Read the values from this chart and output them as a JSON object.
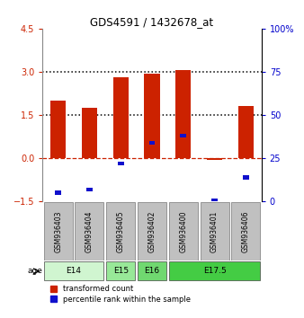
{
  "title": "GDS4591 / 1432678_at",
  "samples": [
    "GSM936403",
    "GSM936404",
    "GSM936405",
    "GSM936402",
    "GSM936400",
    "GSM936401",
    "GSM936406"
  ],
  "transformed_count": [
    2.0,
    1.75,
    2.8,
    2.95,
    3.05,
    -0.05,
    1.8
  ],
  "percentile_rank_raw": [
    5,
    7,
    22,
    34,
    38,
    0,
    14
  ],
  "ylim_main": [
    -1.5,
    4.5
  ],
  "ylim_right": [
    0,
    100
  ],
  "yticks_left": [
    -1.5,
    0,
    1.5,
    3,
    4.5
  ],
  "yticks_right": [
    0,
    25,
    50,
    75,
    100
  ],
  "bar_color_red": "#cc2200",
  "bar_color_blue": "#1010cc",
  "bar_width": 0.5,
  "tick_color_left": "#cc2200",
  "tick_color_right": "#0000cc",
  "legend_red_label": "transformed count",
  "legend_blue_label": "percentile rank within the sample",
  "age_groups": [
    {
      "label": "E14",
      "spans": [
        0,
        1
      ],
      "color": "#d4f5d4"
    },
    {
      "label": "E15",
      "spans": [
        2
      ],
      "color": "#90ee90"
    },
    {
      "label": "E16",
      "spans": [
        3
      ],
      "color": "#70d870"
    },
    {
      "label": "E17.5",
      "spans": [
        4,
        5,
        6
      ],
      "color": "#44cc44"
    }
  ],
  "gsm_box_color": "#c0c0c0",
  "gsm_box_edge": "#888888"
}
